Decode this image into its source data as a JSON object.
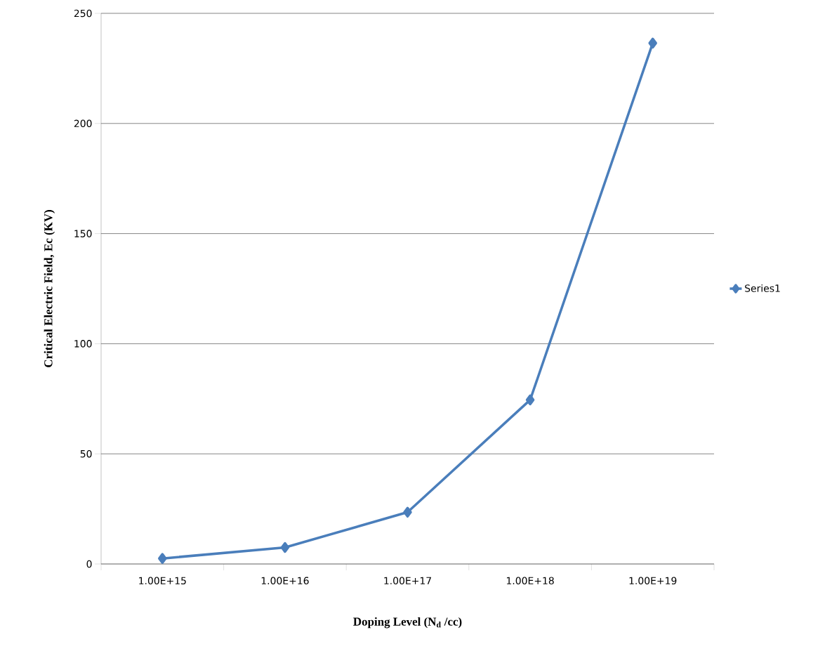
{
  "chart_data": {
    "type": "line",
    "xlabel": "Doping Level (N$_{d}$ /cc)",
    "ylabel": "Critical Electric Field, Ec (KV)",
    "categories": [
      "1.00E+15",
      "1.00E+16",
      "1.00E+17",
      "1.00E+18",
      "1.00E+19"
    ],
    "series": [
      {
        "name": "Series1",
        "color": "#4a7ebb",
        "values": [
          2.5,
          7.5,
          23.5,
          74.5,
          236.5
        ]
      }
    ],
    "ylim": [
      0,
      250
    ],
    "yticks": [
      0,
      50,
      100,
      150,
      200,
      250
    ],
    "grid": "y",
    "legend": "right",
    "marker": "diamond",
    "line_style": "solid"
  }
}
